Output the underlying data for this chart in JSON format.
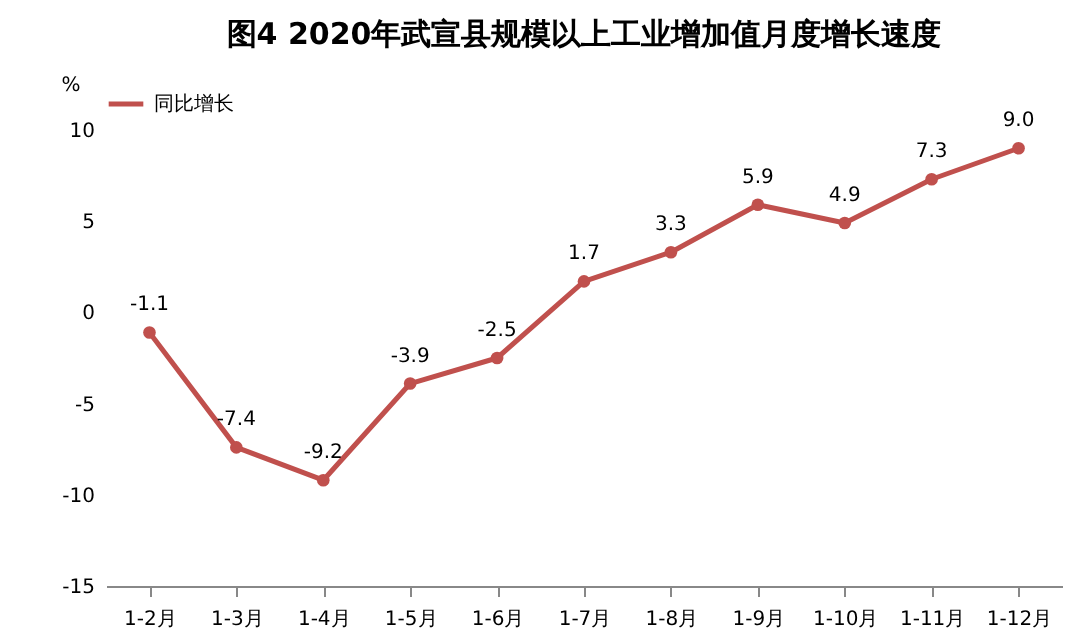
{
  "chart_data": {
    "type": "line",
    "title": "图4  2020年武宣县规模以上工业增加值月度增长速度",
    "ylabel": "%",
    "categories": [
      "1-2月",
      "1-3月",
      "1-4月",
      "1-5月",
      "1-6月",
      "1-7月",
      "1-8月",
      "1-9月",
      "1-10月",
      "1-11月",
      "1-12月"
    ],
    "series": [
      {
        "name": "同比增长",
        "color": "#c0504d",
        "values": [
          -1.1,
          -7.4,
          -9.2,
          -3.9,
          -2.5,
          1.7,
          3.3,
          5.9,
          4.9,
          7.3,
          9.0
        ],
        "value_labels": [
          "-1.1",
          "-7.4",
          "-9.2",
          "-3.9",
          "-2.5",
          "1.7",
          "3.3",
          "5.9",
          "4.9",
          "7.3",
          "9.0"
        ]
      }
    ],
    "ylim": [
      -15,
      10
    ],
    "yticks": [
      -15,
      -10,
      -5,
      0,
      5,
      10
    ],
    "grid": false,
    "legend": "top",
    "marker": "circle",
    "line_style": "solid"
  }
}
